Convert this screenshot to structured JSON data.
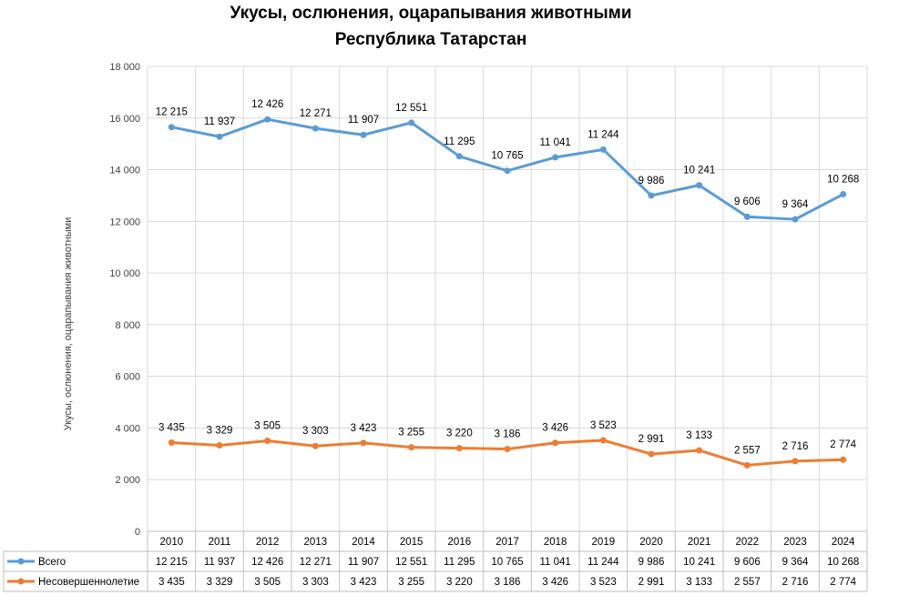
{
  "chart_data": {
    "type": "line",
    "title": "Укусы, ослюнения, оцарапывания животными",
    "subtitle": "Республика Татарстан",
    "ylabel": "Укусы, ослюнения, оцарапывания животными",
    "xlabel": "",
    "ylim": [
      0,
      18000
    ],
    "ytick_step": 2000,
    "yticks": [
      "0",
      "2 000",
      "4 000",
      "6 000",
      "8 000",
      "10 000",
      "12 000",
      "14 000",
      "16 000",
      "18 000"
    ],
    "grid": true,
    "legend_placement": "data-table",
    "categories": [
      "2010",
      "2011",
      "2012",
      "2013",
      "2014",
      "2015",
      "2016",
      "2017",
      "2018",
      "2019",
      "2020",
      "2021",
      "2022",
      "2023",
      "2024"
    ],
    "series": [
      {
        "name": "Всего",
        "color": "#5B9BD5",
        "values": [
          15650,
          15280,
          15950,
          15600,
          15350,
          15820,
          14520,
          13960,
          14480,
          14780,
          13000,
          13400,
          12180,
          12080,
          13050
        ],
        "labels": [
          "12 215",
          "11 937",
          "12 426",
          "12 271",
          "11 907",
          "12 551",
          "11 295",
          "10 765",
          "11 041",
          "11 244",
          "9 986",
          "10 241",
          "9 606",
          "9 364",
          "10 268"
        ]
      },
      {
        "name": "Несовершеннолетие",
        "color": "#ED7D31",
        "values": [
          3435,
          3329,
          3505,
          3303,
          3423,
          3255,
          3220,
          3186,
          3426,
          3523,
          2991,
          3133,
          2557,
          2716,
          2774
        ],
        "labels": [
          "3 435",
          "3 329",
          "3 505",
          "3 303",
          "3 423",
          "3 255",
          "3 220",
          "3 186",
          "3 426",
          "3 523",
          "2 991",
          "3 133",
          "2 557",
          "2 716",
          "2 774"
        ]
      }
    ]
  }
}
